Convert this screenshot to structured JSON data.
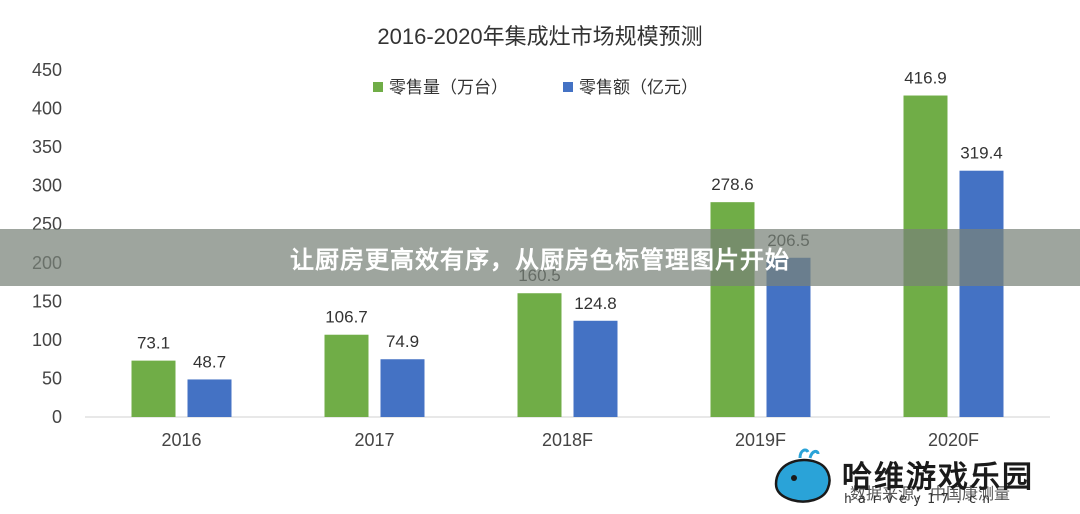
{
  "chart_data": {
    "type": "bar",
    "title": "2016-2020年集成灶市场规模预测",
    "categories": [
      "2016",
      "2017",
      "2018F",
      "2019F",
      "2020F"
    ],
    "series": [
      {
        "name": "零售量（万台）",
        "color": "#70ad47",
        "values": [
          73.1,
          106.7,
          160.5,
          278.6,
          416.9
        ],
        "labels": [
          "73.1",
          "106.7",
          "160.5",
          "278.6",
          "416.9"
        ]
      },
      {
        "name": "零售额（亿元）",
        "color": "#4472c4",
        "values": [
          48.7,
          74.9,
          124.8,
          206.5,
          319.4
        ],
        "labels": [
          "48.7",
          "74.9",
          "124.8",
          "206.5",
          "319.4"
        ]
      }
    ],
    "ylim": [
      0,
      450
    ],
    "yticks": [
      0,
      50,
      100,
      150,
      200,
      250,
      300,
      350,
      400,
      450
    ],
    "grid": false,
    "legend": "top"
  },
  "banner": {
    "text": "让厨房更高效有序，从厨房色标管理图片开始"
  },
  "source_note": "数据来源：中国康测量",
  "watermark": {
    "title": "哈维游戏乐园",
    "url": "harvey17.cn",
    "icon": "whale-icon"
  }
}
